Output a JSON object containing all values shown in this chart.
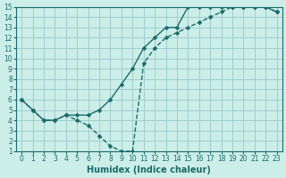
{
  "xlabel": "Humidex (Indice chaleur)",
  "bg_color": "#cceee8",
  "grid_color": "#9ecece",
  "line_color": "#1a6b6b",
  "xlim": [
    -0.5,
    23.5
  ],
  "ylim": [
    1,
    15
  ],
  "xticks": [
    0,
    1,
    2,
    3,
    4,
    5,
    6,
    7,
    8,
    9,
    10,
    11,
    12,
    13,
    14,
    15,
    16,
    17,
    18,
    19,
    20,
    21,
    22,
    23
  ],
  "yticks": [
    1,
    2,
    3,
    4,
    5,
    6,
    7,
    8,
    9,
    10,
    11,
    12,
    13,
    14,
    15
  ],
  "line1_x": [
    0,
    1,
    2,
    3,
    4,
    5,
    6,
    7,
    8,
    9,
    10,
    11,
    12,
    13,
    14,
    15,
    16,
    17,
    18,
    19,
    20,
    21,
    22,
    23
  ],
  "line1_y": [
    6,
    5,
    4,
    4,
    4.5,
    4.5,
    4.5,
    5,
    6,
    7.5,
    9,
    11,
    12,
    13,
    13,
    15,
    15,
    15,
    15,
    15,
    15,
    15,
    15,
    14.5
  ],
  "line2_x": [
    0,
    1,
    2,
    3,
    4,
    5,
    6,
    7,
    8,
    9,
    10,
    11,
    12,
    13,
    14,
    15,
    16,
    17,
    18,
    19,
    20,
    21,
    22,
    23
  ],
  "line2_y": [
    6,
    5,
    4,
    4,
    4.5,
    4,
    3.5,
    2.5,
    1.5,
    1,
    1,
    9.5,
    11,
    12,
    12.5,
    13,
    13.5,
    14,
    14.5,
    15,
    15,
    15,
    15,
    14.5
  ],
  "tick_fontsize": 5.5,
  "xlabel_fontsize": 7,
  "marker_size": 2.5,
  "linewidth": 1.0
}
